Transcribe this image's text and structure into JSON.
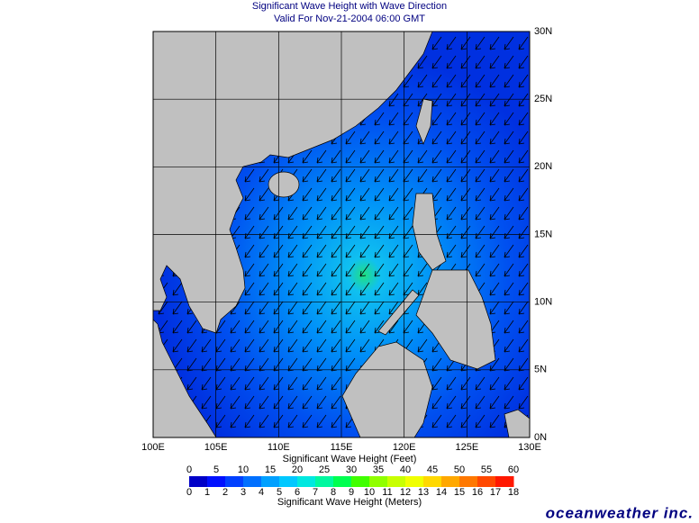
{
  "header": {
    "title": "Significant Wave Height with Wave Direction",
    "subtitle": "Valid For Nov-21-2004 06:00 GMT"
  },
  "map": {
    "lon_ticks": [
      {
        "value": 100,
        "label": "100E"
      },
      {
        "value": 105,
        "label": "105E"
      },
      {
        "value": 110,
        "label": "110E"
      },
      {
        "value": 115,
        "label": "115E"
      },
      {
        "value": 120,
        "label": "120E"
      },
      {
        "value": 125,
        "label": "125E"
      },
      {
        "value": 130,
        "label": "130E"
      }
    ],
    "lat_ticks": [
      {
        "value": 0,
        "label": "0N"
      },
      {
        "value": 5,
        "label": "5N"
      },
      {
        "value": 10,
        "label": "10N"
      },
      {
        "value": 15,
        "label": "15N"
      },
      {
        "value": 20,
        "label": "20N"
      },
      {
        "value": 25,
        "label": "25N"
      },
      {
        "value": 30,
        "label": "30N"
      }
    ]
  },
  "legend": {
    "feet_title": "Significant Wave Height (Feet)",
    "feet_ticks": [
      0,
      5,
      10,
      15,
      20,
      25,
      30,
      35,
      40,
      45,
      50,
      55,
      60
    ],
    "meters_title": "Significant Wave Height (Meters)",
    "meters_ticks": [
      0,
      1,
      2,
      3,
      4,
      5,
      6,
      7,
      8,
      9,
      10,
      11,
      12,
      13,
      14,
      15,
      16,
      17,
      18
    ]
  },
  "footer": {
    "logo": "oceanweather inc."
  }
}
